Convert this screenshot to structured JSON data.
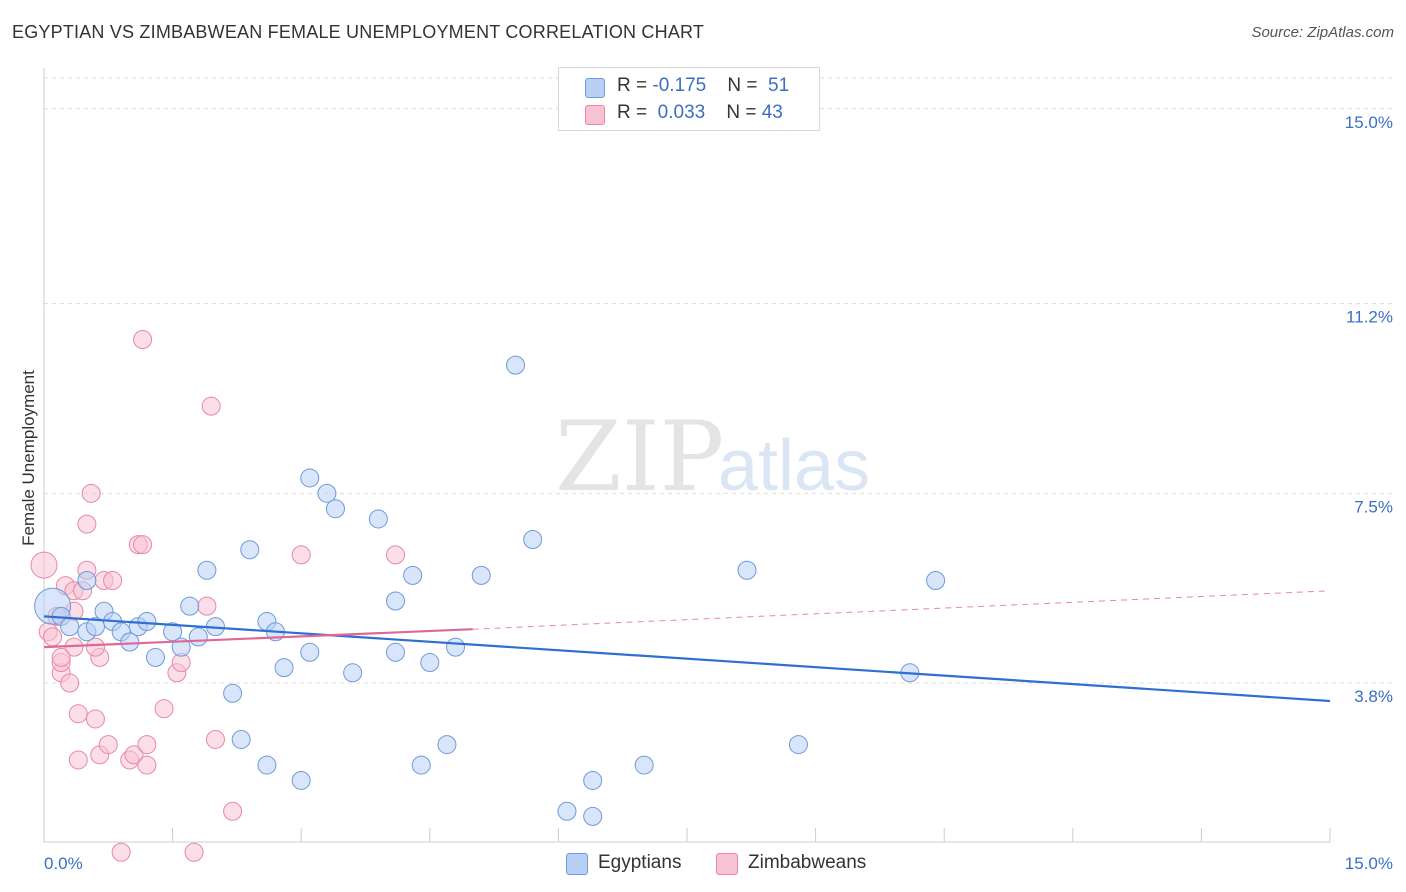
{
  "title": "EGYPTIAN VS ZIMBABWEAN FEMALE UNEMPLOYMENT CORRELATION CHART",
  "source": "Source: ZipAtlas.com",
  "watermark": {
    "zip": "ZIP",
    "atlas": "atlas"
  },
  "colors": {
    "egyptians_fill": "#b8d0f5",
    "egyptians_stroke": "#6f9ad8",
    "egyptians_line": "#2f6fcf",
    "zimbabweans_fill": "#f7c3d3",
    "zimbabweans_stroke": "#e887a8",
    "zimbabweans_line": "#e0679a",
    "accent_text": "#3b6fc4"
  },
  "legend": {
    "egyptians": {
      "r_label": "R = ",
      "r_value": "-0.175",
      "n_label": "N = ",
      "n_value": "51"
    },
    "zimbabweans": {
      "r_label": "R = ",
      "r_value": "0.033",
      "n_label": "N = ",
      "n_value": "43"
    }
  },
  "bottom_legend": {
    "egyptians": "Egyptians",
    "zimbabweans": "Zimbabweans"
  },
  "chart_data": {
    "type": "scatter",
    "title": "EGYPTIAN VS ZIMBABWEAN FEMALE UNEMPLOYMENT CORRELATION CHART",
    "xlabel": "",
    "ylabel": "Female Unemployment",
    "xlim": [
      0,
      15
    ],
    "ylim": [
      0.7,
      15.6
    ],
    "x_tick_labels": [
      "0.0%",
      "15.0%"
    ],
    "y_ticks": [
      {
        "value": 15.0,
        "label": "15.0%"
      },
      {
        "value": 11.2,
        "label": "11.2%"
      },
      {
        "value": 7.5,
        "label": "7.5%"
      },
      {
        "value": 3.8,
        "label": "3.8%"
      }
    ],
    "grid": true,
    "legend_position": "top-center",
    "series": [
      {
        "name": "Egyptians",
        "points": [
          [
            0.1,
            5.3
          ],
          [
            0.2,
            5.1
          ],
          [
            0.3,
            4.9
          ],
          [
            0.5,
            5.8
          ],
          [
            0.5,
            4.8
          ],
          [
            0.6,
            4.9
          ],
          [
            0.7,
            5.2
          ],
          [
            0.8,
            5.0
          ],
          [
            0.9,
            4.8
          ],
          [
            1.0,
            4.6
          ],
          [
            1.1,
            4.9
          ],
          [
            1.2,
            5.0
          ],
          [
            1.3,
            4.3
          ],
          [
            1.5,
            4.8
          ],
          [
            1.6,
            4.5
          ],
          [
            1.7,
            5.3
          ],
          [
            1.8,
            4.7
          ],
          [
            1.9,
            6.0
          ],
          [
            2.0,
            4.9
          ],
          [
            2.2,
            3.6
          ],
          [
            2.3,
            2.7
          ],
          [
            2.4,
            6.4
          ],
          [
            2.6,
            2.2
          ],
          [
            2.6,
            5.0
          ],
          [
            2.7,
            4.8
          ],
          [
            2.8,
            4.1
          ],
          [
            3.0,
            1.9
          ],
          [
            3.1,
            4.4
          ],
          [
            3.1,
            7.8
          ],
          [
            3.3,
            7.5
          ],
          [
            3.4,
            7.2
          ],
          [
            3.6,
            4.0
          ],
          [
            3.9,
            7.0
          ],
          [
            4.1,
            4.4
          ],
          [
            4.1,
            5.4
          ],
          [
            4.3,
            5.9
          ],
          [
            4.4,
            2.2
          ],
          [
            4.5,
            4.2
          ],
          [
            4.7,
            2.6
          ],
          [
            4.8,
            4.5
          ],
          [
            5.1,
            5.9
          ],
          [
            5.5,
            10.0
          ],
          [
            5.7,
            6.6
          ],
          [
            6.1,
            1.3
          ],
          [
            6.4,
            1.2
          ],
          [
            6.4,
            1.9
          ],
          [
            7.0,
            2.2
          ],
          [
            8.2,
            6.0
          ],
          [
            8.8,
            2.6
          ],
          [
            10.1,
            4.0
          ],
          [
            10.4,
            5.8
          ]
        ],
        "trend": {
          "x": [
            0,
            15
          ],
          "y": [
            5.1,
            3.45
          ],
          "style": "solid"
        }
      },
      {
        "name": "Zimbabweans",
        "points": [
          [
            0.0,
            6.1
          ],
          [
            0.05,
            4.8
          ],
          [
            0.1,
            4.7
          ],
          [
            0.15,
            5.1
          ],
          [
            0.2,
            4.0
          ],
          [
            0.2,
            4.2
          ],
          [
            0.25,
            5.7
          ],
          [
            0.3,
            3.8
          ],
          [
            0.35,
            5.6
          ],
          [
            0.35,
            4.5
          ],
          [
            0.4,
            3.2
          ],
          [
            0.4,
            2.3
          ],
          [
            0.45,
            5.6
          ],
          [
            0.5,
            6.9
          ],
          [
            0.5,
            6.0
          ],
          [
            0.55,
            7.5
          ],
          [
            0.6,
            3.1
          ],
          [
            0.65,
            2.4
          ],
          [
            0.65,
            4.3
          ],
          [
            0.7,
            5.8
          ],
          [
            0.75,
            2.6
          ],
          [
            0.8,
            5.8
          ],
          [
            0.9,
            0.5
          ],
          [
            1.0,
            2.3
          ],
          [
            1.05,
            2.4
          ],
          [
            1.1,
            6.5
          ],
          [
            1.15,
            6.5
          ],
          [
            1.15,
            10.5
          ],
          [
            1.2,
            2.2
          ],
          [
            1.2,
            2.6
          ],
          [
            1.4,
            3.3
          ],
          [
            1.55,
            4.0
          ],
          [
            1.6,
            4.2
          ],
          [
            1.75,
            0.5
          ],
          [
            1.9,
            5.3
          ],
          [
            1.95,
            9.2
          ],
          [
            2.0,
            2.7
          ],
          [
            2.2,
            1.3
          ],
          [
            3.0,
            6.3
          ],
          [
            4.1,
            6.3
          ],
          [
            0.2,
            4.3
          ],
          [
            0.6,
            4.5
          ],
          [
            0.35,
            5.2
          ]
        ],
        "trend": {
          "x": [
            0,
            5.0
          ],
          "y": [
            4.5,
            4.85
          ],
          "style": "solid",
          "extension": {
            "x": [
              5.0,
              15
            ],
            "y": [
              4.85,
              5.6
            ],
            "style": "dashed"
          }
        }
      }
    ]
  }
}
